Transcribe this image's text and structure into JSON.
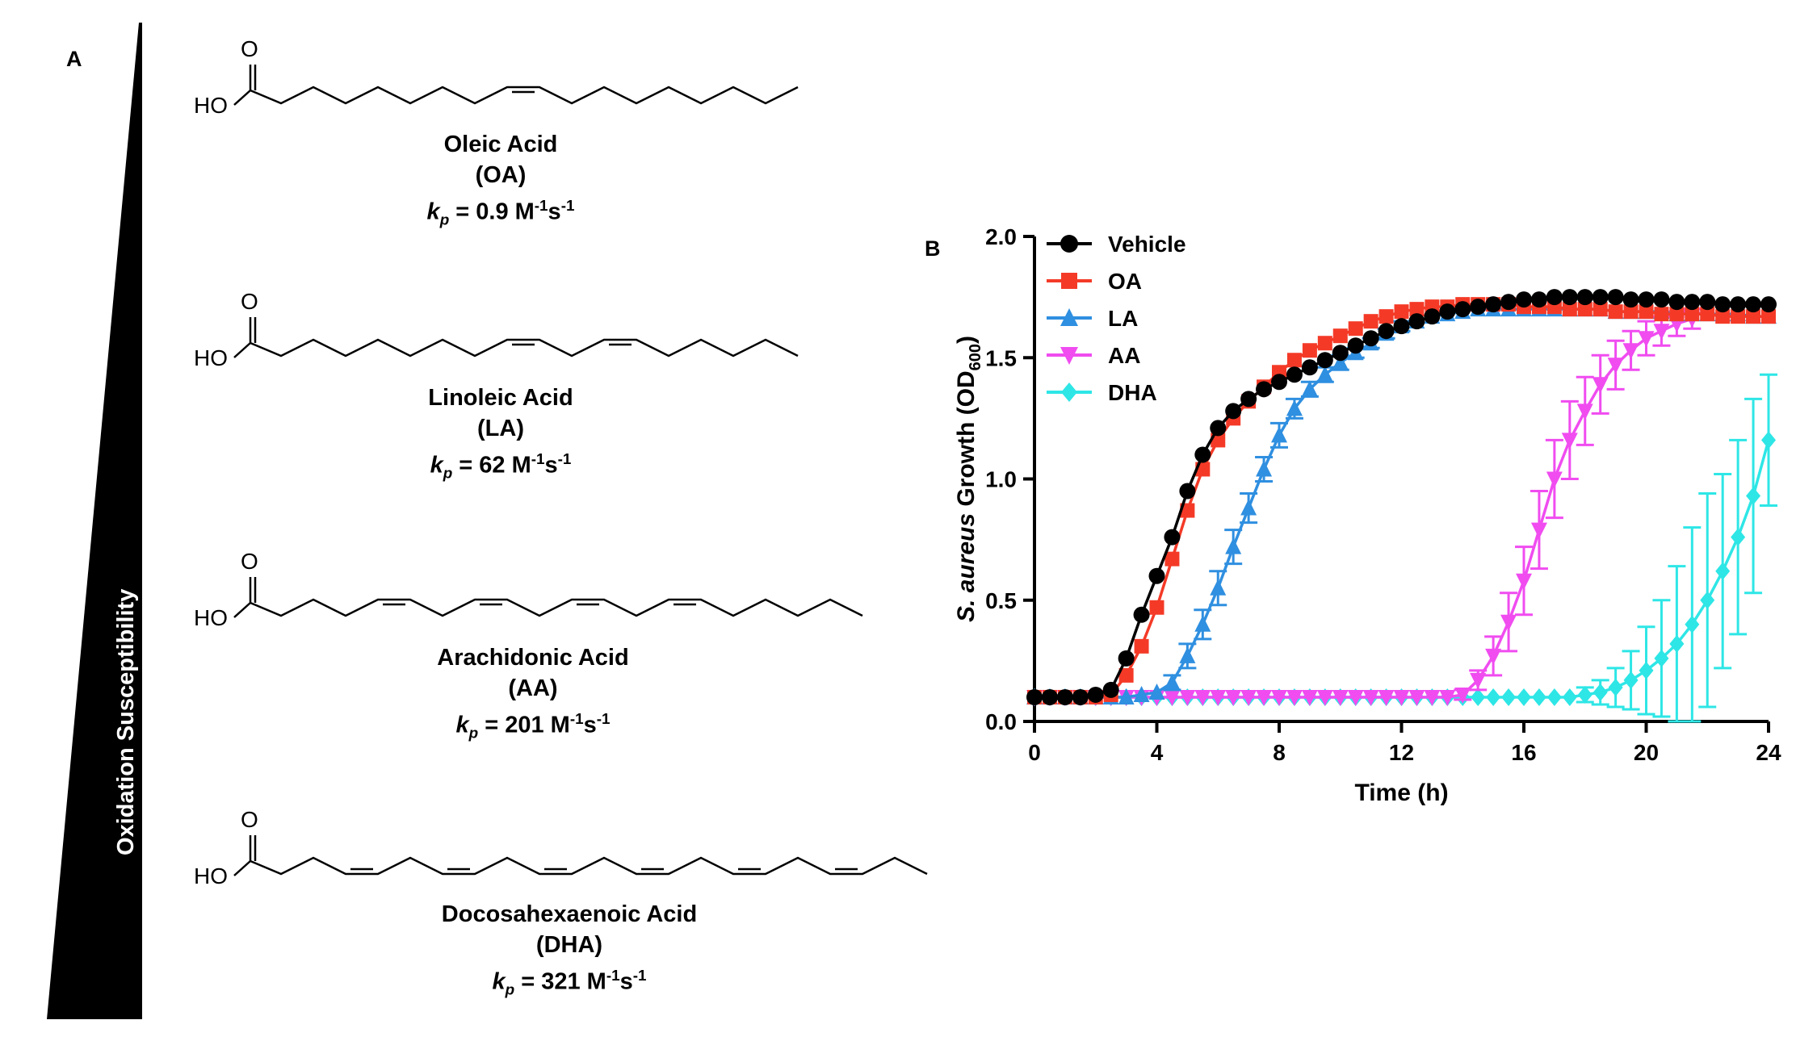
{
  "panel_a": {
    "letter": "A",
    "gradient_label": "Oxidation Susceptibility",
    "molecules": [
      {
        "name": "Oleic Acid",
        "abbr": "(OA)",
        "kp_symbol": "k",
        "kp_sub": "p",
        "kp_value": " = 0.9 M",
        "kp_unit_tail": "s",
        "oh_label": "HO",
        "o_label": "O"
      },
      {
        "name": "Linoleic Acid",
        "abbr": "(LA)",
        "kp_symbol": "k",
        "kp_sub": "p",
        "kp_value": " = 62 M",
        "kp_unit_tail": "s",
        "oh_label": "HO",
        "o_label": "O"
      },
      {
        "name": "Arachidonic Acid",
        "abbr": "(AA)",
        "kp_symbol": "k",
        "kp_sub": "p",
        "kp_value": " = 201 M",
        "kp_unit_tail": "s",
        "oh_label": "HO",
        "o_label": "O"
      },
      {
        "name": "Docosahexaenoic Acid",
        "abbr": "(DHA)",
        "kp_symbol": "k",
        "kp_sub": "p",
        "kp_value": " = 321 M",
        "kp_unit_tail": "s",
        "oh_label": "HO",
        "o_label": "O"
      }
    ],
    "exponent": "-1"
  },
  "chart_data": {
    "panel_letter": "B",
    "type": "line",
    "xlabel": "Time (h)",
    "ylabel_italic": "S. aureus",
    "ylabel_rest": " Growth (OD",
    "ylabel_sub": "600",
    "ylabel_close": ")",
    "xlim": [
      0,
      24
    ],
    "ylim": [
      0,
      2.0
    ],
    "xticks": [
      "0",
      "4",
      "8",
      "12",
      "16",
      "20",
      "24"
    ],
    "yticks": [
      "0.0",
      "0.5",
      "1.0",
      "1.5",
      "2.0"
    ],
    "grid": false,
    "legend_position": "top-left",
    "colors": {
      "Vehicle": "#000000",
      "OA": "#f43a27",
      "LA": "#2f8fe0",
      "AA": "#f04cf0",
      "DHA": "#2ee6e6"
    },
    "series": [
      {
        "name": "Vehicle",
        "marker": "circle",
        "x": [
          0,
          0.5,
          1,
          1.5,
          2,
          2.5,
          3,
          3.5,
          4,
          4.5,
          5,
          5.5,
          6,
          6.5,
          7,
          7.5,
          8,
          8.5,
          9,
          9.5,
          10,
          10.5,
          11,
          11.5,
          12,
          12.5,
          13,
          13.5,
          14,
          14.5,
          15,
          15.5,
          16,
          16.5,
          17,
          17.5,
          18,
          18.5,
          19,
          19.5,
          20,
          20.5,
          21,
          21.5,
          22,
          22.5,
          23,
          23.5,
          24
        ],
        "y": [
          0.1,
          0.1,
          0.1,
          0.1,
          0.11,
          0.13,
          0.26,
          0.44,
          0.6,
          0.76,
          0.95,
          1.1,
          1.21,
          1.28,
          1.33,
          1.37,
          1.4,
          1.43,
          1.46,
          1.49,
          1.52,
          1.55,
          1.58,
          1.61,
          1.63,
          1.65,
          1.67,
          1.69,
          1.7,
          1.71,
          1.72,
          1.73,
          1.74,
          1.74,
          1.75,
          1.75,
          1.75,
          1.75,
          1.75,
          1.74,
          1.74,
          1.74,
          1.73,
          1.73,
          1.73,
          1.72,
          1.72,
          1.72,
          1.72
        ]
      },
      {
        "name": "OA",
        "marker": "square",
        "x": [
          0,
          0.5,
          1,
          1.5,
          2,
          2.5,
          3,
          3.5,
          4,
          4.5,
          5,
          5.5,
          6,
          6.5,
          7,
          7.5,
          8,
          8.5,
          9,
          9.5,
          10,
          10.5,
          11,
          11.5,
          12,
          12.5,
          13,
          13.5,
          14,
          14.5,
          15,
          15.5,
          16,
          16.5,
          17,
          17.5,
          18,
          18.5,
          19,
          19.5,
          20,
          20.5,
          21,
          21.5,
          22,
          22.5,
          23,
          23.5,
          24
        ],
        "y": [
          0.1,
          0.1,
          0.1,
          0.1,
          0.1,
          0.11,
          0.19,
          0.31,
          0.47,
          0.67,
          0.87,
          1.04,
          1.16,
          1.25,
          1.32,
          1.38,
          1.44,
          1.49,
          1.53,
          1.56,
          1.59,
          1.62,
          1.65,
          1.67,
          1.69,
          1.7,
          1.71,
          1.71,
          1.72,
          1.72,
          1.72,
          1.72,
          1.71,
          1.71,
          1.71,
          1.7,
          1.7,
          1.7,
          1.69,
          1.69,
          1.69,
          1.68,
          1.68,
          1.68,
          1.68,
          1.67,
          1.67,
          1.67,
          1.67
        ]
      },
      {
        "name": "LA",
        "marker": "triangle-up",
        "x": [
          0,
          0.5,
          1,
          1.5,
          2,
          2.5,
          3,
          3.5,
          4,
          4.5,
          5,
          5.5,
          6,
          6.5,
          7,
          7.5,
          8,
          8.5,
          9,
          9.5,
          10,
          10.5,
          11,
          11.5,
          12,
          12.5,
          13,
          13.5,
          14,
          14.5,
          15,
          15.5,
          16,
          16.5,
          17,
          17.5,
          18,
          18.5,
          19,
          19.5,
          20,
          20.5,
          21,
          21.5,
          22,
          22.5,
          23,
          23.5,
          24
        ],
        "y": [
          0.1,
          0.1,
          0.1,
          0.1,
          0.1,
          0.1,
          0.1,
          0.11,
          0.12,
          0.16,
          0.27,
          0.4,
          0.55,
          0.72,
          0.88,
          1.04,
          1.18,
          1.29,
          1.37,
          1.43,
          1.48,
          1.52,
          1.56,
          1.6,
          1.63,
          1.65,
          1.67,
          1.68,
          1.69,
          1.7,
          1.7,
          1.7,
          1.7,
          1.7,
          1.7,
          1.7,
          1.7,
          1.7,
          1.69,
          1.69,
          1.69,
          1.69,
          1.68,
          1.68,
          1.68,
          1.68,
          1.68,
          1.67,
          1.67
        ],
        "err": [
          0,
          0,
          0,
          0,
          0,
          0,
          0,
          0,
          0,
          0.03,
          0.05,
          0.06,
          0.07,
          0.07,
          0.06,
          0.05,
          0.05,
          0.04,
          0.03,
          0.03,
          0.03,
          0.02,
          0.02,
          0.02,
          0.02,
          0,
          0,
          0,
          0,
          0,
          0,
          0,
          0,
          0,
          0,
          0,
          0,
          0,
          0,
          0,
          0,
          0,
          0,
          0,
          0,
          0,
          0,
          0,
          0
        ]
      },
      {
        "name": "AA",
        "marker": "triangle-down",
        "x": [
          0,
          0.5,
          1,
          1.5,
          2,
          2.5,
          3,
          3.5,
          4,
          4.5,
          5,
          5.5,
          6,
          6.5,
          7,
          7.5,
          8,
          8.5,
          9,
          9.5,
          10,
          10.5,
          11,
          11.5,
          12,
          12.5,
          13,
          13.5,
          14,
          14.5,
          15,
          15.5,
          16,
          16.5,
          17,
          17.5,
          18,
          18.5,
          19,
          19.5,
          20,
          20.5,
          21,
          21.5
        ],
        "y": [
          0.1,
          0.1,
          0.1,
          0.1,
          0.1,
          0.1,
          0.1,
          0.1,
          0.1,
          0.1,
          0.1,
          0.1,
          0.1,
          0.1,
          0.1,
          0.1,
          0.1,
          0.1,
          0.1,
          0.1,
          0.1,
          0.1,
          0.1,
          0.1,
          0.1,
          0.1,
          0.1,
          0.1,
          0.11,
          0.17,
          0.27,
          0.41,
          0.58,
          0.79,
          1.0,
          1.16,
          1.28,
          1.39,
          1.47,
          1.53,
          1.58,
          1.61,
          1.64,
          1.66
        ],
        "err": [
          0,
          0,
          0,
          0,
          0,
          0,
          0,
          0,
          0,
          0,
          0,
          0,
          0,
          0,
          0,
          0,
          0,
          0,
          0,
          0,
          0,
          0,
          0,
          0,
          0,
          0,
          0,
          0,
          0.02,
          0.04,
          0.08,
          0.12,
          0.14,
          0.16,
          0.16,
          0.16,
          0.14,
          0.12,
          0.1,
          0.08,
          0.07,
          0.06,
          0.05,
          0.04
        ]
      },
      {
        "name": "DHA",
        "marker": "diamond",
        "x": [
          0,
          0.5,
          1,
          1.5,
          2,
          2.5,
          3,
          3.5,
          4,
          4.5,
          5,
          5.5,
          6,
          6.5,
          7,
          7.5,
          8,
          8.5,
          9,
          9.5,
          10,
          10.5,
          11,
          11.5,
          12,
          12.5,
          13,
          13.5,
          14,
          14.5,
          15,
          15.5,
          16,
          16.5,
          17,
          17.5,
          18,
          18.5,
          19,
          19.5,
          20,
          20.5,
          21,
          21.5,
          22,
          22.5,
          23,
          23.5,
          24
        ],
        "y": [
          0.1,
          0.1,
          0.1,
          0.1,
          0.1,
          0.1,
          0.1,
          0.1,
          0.1,
          0.1,
          0.1,
          0.1,
          0.1,
          0.1,
          0.1,
          0.1,
          0.1,
          0.1,
          0.1,
          0.1,
          0.1,
          0.1,
          0.1,
          0.1,
          0.1,
          0.1,
          0.1,
          0.1,
          0.1,
          0.1,
          0.1,
          0.1,
          0.1,
          0.1,
          0.1,
          0.1,
          0.11,
          0.12,
          0.14,
          0.17,
          0.21,
          0.26,
          0.32,
          0.4,
          0.5,
          0.62,
          0.76,
          0.93,
          1.16
        ],
        "err": [
          0,
          0,
          0,
          0,
          0,
          0,
          0,
          0,
          0,
          0,
          0,
          0,
          0,
          0,
          0,
          0,
          0,
          0,
          0,
          0,
          0,
          0,
          0,
          0,
          0,
          0,
          0,
          0,
          0,
          0,
          0,
          0,
          0,
          0,
          0,
          0,
          0.03,
          0.05,
          0.08,
          0.12,
          0.18,
          0.24,
          0.32,
          0.4,
          0.44,
          0.4,
          0.4,
          0.4,
          0.27
        ]
      }
    ]
  }
}
